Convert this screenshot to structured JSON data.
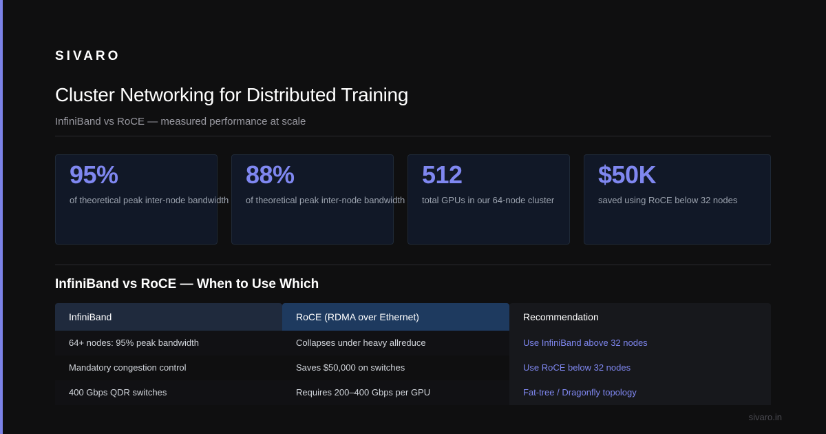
{
  "brand": "SIVARO",
  "title": "Cluster Networking for Distributed Training",
  "subtitle": "InfiniBand vs RoCE — measured performance at scale",
  "stats": [
    {
      "value": "95%",
      "label": "of theoretical peak inter-node bandwidth"
    },
    {
      "value": "88%",
      "label": "of theoretical peak inter-node bandwidth"
    },
    {
      "value": "512",
      "label": "total GPUs in our 64-node cluster"
    },
    {
      "value": "$50K",
      "label": "saved using RoCE below 32 nodes"
    }
  ],
  "section_title": "InfiniBand vs RoCE — When to Use Which",
  "table": {
    "headers": [
      "InfiniBand",
      "RoCE (RDMA over Ethernet)",
      "Recommendation"
    ],
    "columns": [
      [
        "64+ nodes: 95% peak bandwidth",
        "Mandatory congestion control",
        "400 Gbps QDR switches"
      ],
      [
        "Collapses under heavy allreduce",
        "Saves $50,000 on switches",
        "Requires 200–400 Gbps per GPU"
      ],
      [
        "Use InfiniBand above 32 nodes",
        "Use RoCE below 32 nodes",
        "Fat-tree / Dragonfly topology"
      ]
    ]
  },
  "footer": "sivaro.in",
  "colors": {
    "accent": "#7b82e8",
    "stat_value": "#7f87f0",
    "background": "#0f0f10",
    "card": "#111827"
  }
}
